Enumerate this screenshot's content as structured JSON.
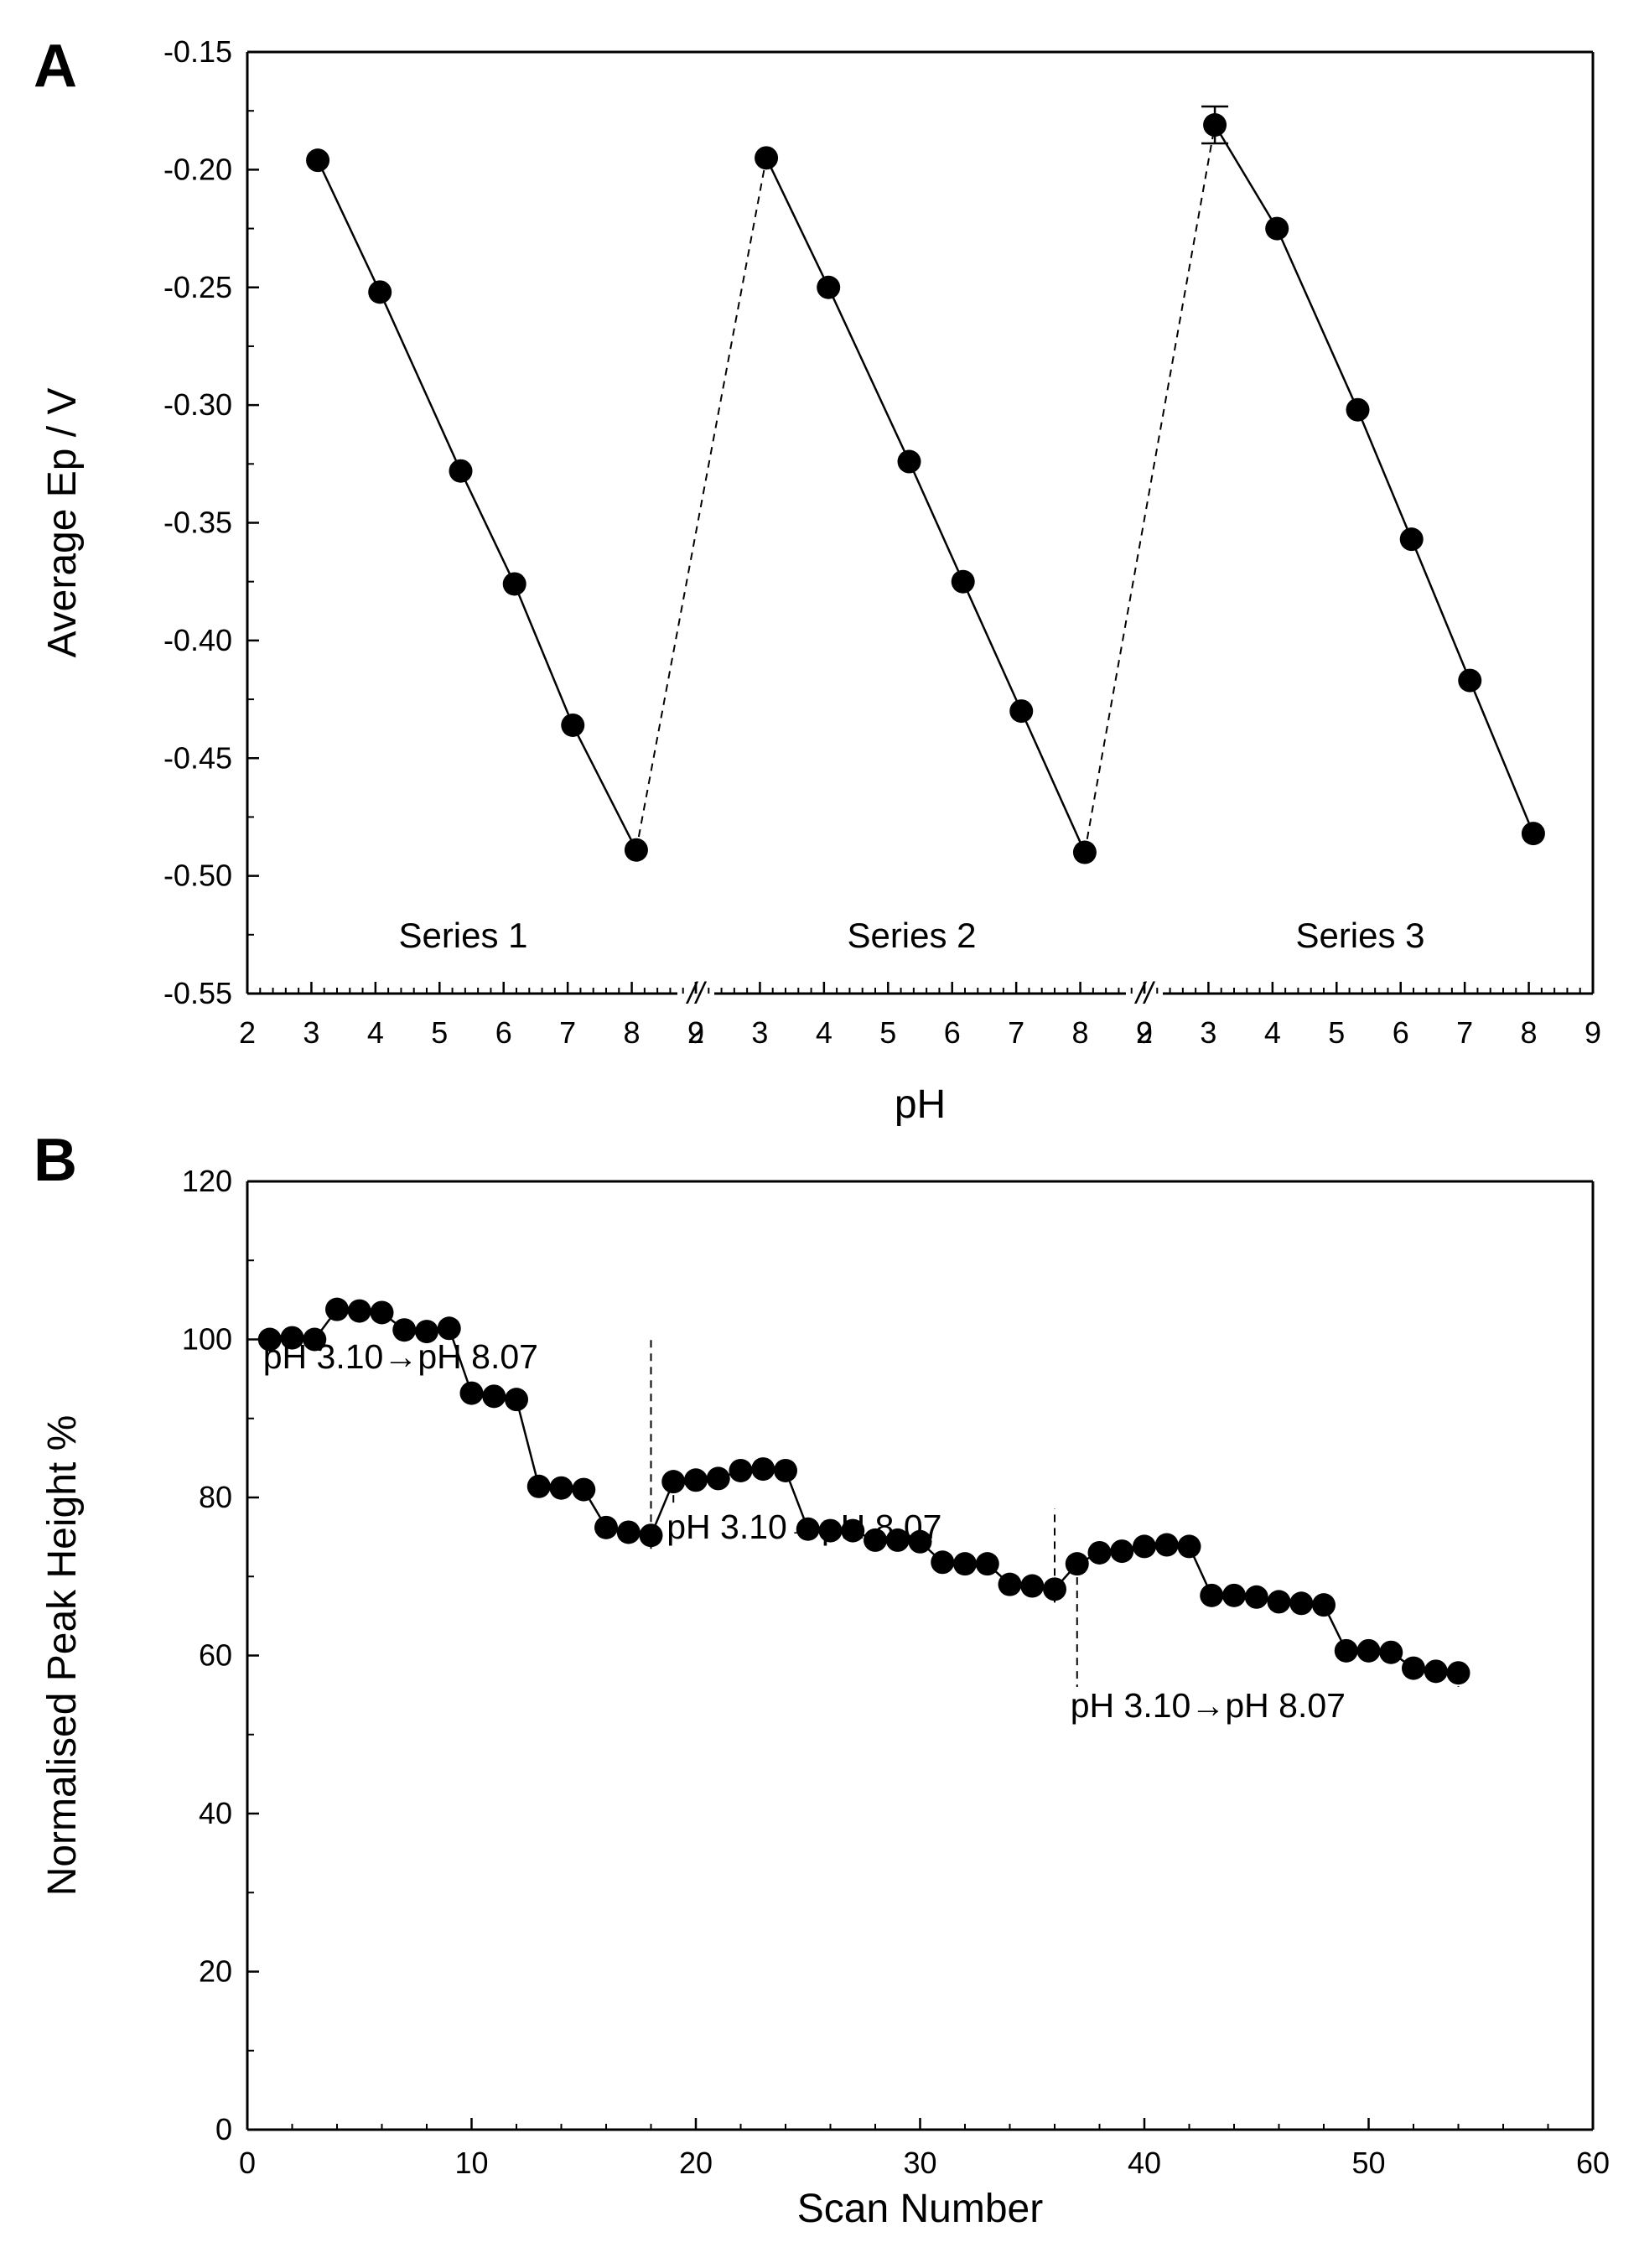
{
  "chart_data": [
    {
      "panel": "A",
      "type": "scatter",
      "title": "",
      "xlabel": "pH",
      "ylabel": "Average Ep / V",
      "ylim": [
        -0.55,
        -0.15
      ],
      "yticks": [
        "-0.15",
        "-0.20",
        "-0.25",
        "-0.30",
        "-0.35",
        "-0.40",
        "-0.45",
        "-0.50",
        "-0.55"
      ],
      "xticks": [
        "2",
        "3",
        "4",
        "5",
        "6",
        "7",
        "8",
        "9"
      ],
      "xlim_per_segment": [
        2,
        9
      ],
      "axis_break": "//",
      "grid": false,
      "series": [
        {
          "name": "Series 1",
          "x": [
            3.1,
            4.07,
            5.33,
            6.17,
            7.08,
            8.07
          ],
          "y": [
            -0.196,
            -0.252,
            -0.328,
            -0.376,
            -0.436,
            -0.489
          ]
        },
        {
          "name": "Series 2",
          "x": [
            3.1,
            4.07,
            5.33,
            6.17,
            7.08,
            8.07
          ],
          "y": [
            -0.195,
            -0.25,
            -0.324,
            -0.375,
            -0.43,
            -0.49
          ]
        },
        {
          "name": "Series 3",
          "x": [
            3.1,
            4.07,
            5.33,
            6.17,
            7.08,
            8.07
          ],
          "y": [
            -0.181,
            -0.225,
            -0.302,
            -0.357,
            -0.417,
            -0.482
          ]
        }
      ]
    },
    {
      "panel": "B",
      "type": "line",
      "title": "",
      "xlabel": "Scan Number",
      "ylabel": "Normalised Peak Height %",
      "xlim": [
        0,
        60
      ],
      "ylim": [
        0,
        120
      ],
      "xticks": [
        "0",
        "10",
        "20",
        "30",
        "40",
        "50",
        "60"
      ],
      "yticks": [
        "0",
        "20",
        "40",
        "60",
        "80",
        "100",
        "120"
      ],
      "grid": false,
      "x": [
        1,
        2,
        3,
        4,
        5,
        6,
        7,
        8,
        9,
        10,
        11,
        12,
        13,
        14,
        15,
        16,
        17,
        18,
        19,
        20,
        21,
        22,
        23,
        24,
        25,
        26,
        27,
        28,
        29,
        30,
        31,
        32,
        33,
        34,
        35,
        36,
        37,
        38,
        39,
        40,
        41,
        42,
        43,
        44,
        45,
        46,
        47,
        48,
        49,
        50,
        51,
        52,
        53,
        54
      ],
      "values": [
        100.0,
        100.2,
        100.0,
        103.8,
        103.6,
        103.4,
        101.2,
        101.0,
        101.4,
        93.2,
        92.8,
        92.4,
        81.4,
        81.2,
        81.0,
        76.2,
        75.6,
        75.2,
        82.0,
        82.2,
        82.4,
        83.4,
        83.6,
        83.4,
        76.0,
        75.8,
        75.8,
        74.6,
        74.6,
        74.4,
        71.8,
        71.6,
        71.6,
        69.0,
        68.8,
        68.4,
        71.6,
        73.0,
        73.2,
        73.8,
        74.0,
        73.8,
        67.6,
        67.6,
        67.4,
        66.8,
        66.6,
        66.4,
        60.6,
        60.6,
        60.4,
        58.4,
        58.0,
        57.8
      ],
      "annotations": [
        {
          "text": "pH 3.10→pH 8.07",
          "from_scan": 1,
          "to_scan": 18
        },
        {
          "text": "pH 3.10→pH 8.07",
          "from_scan": 19,
          "to_scan": 36
        },
        {
          "text": "pH 3.10→pH 8.07",
          "from_scan": 37,
          "to_scan": 54
        }
      ]
    }
  ]
}
